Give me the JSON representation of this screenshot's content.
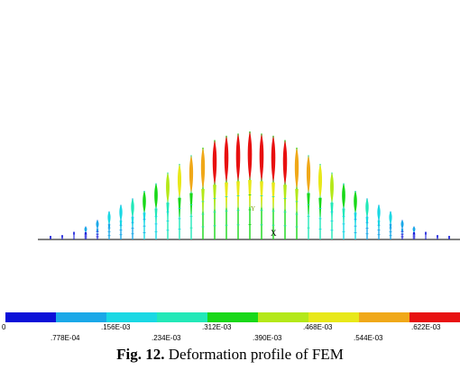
{
  "figure": {
    "caption_label": "Fig. 12.",
    "caption_text": " Deformation profile of FEM",
    "axis_marker": "X",
    "origin_marker": "Y",
    "colors": [
      "#0a10d8",
      "#1aa8e8",
      "#19d8e4",
      "#22e8b8",
      "#18d818",
      "#b4e818",
      "#e8e818",
      "#f0a818",
      "#e81010"
    ],
    "legend_ticks": [
      {
        "text": "0",
        "row": "upper",
        "index": 0
      },
      {
        "text": ".778E-04",
        "row": "lower",
        "index": 1
      },
      {
        "text": ".156E-03",
        "row": "upper",
        "index": 2
      },
      {
        "text": ".234E-03",
        "row": "lower",
        "index": 3
      },
      {
        "text": ".312E-03",
        "row": "upper",
        "index": 4
      },
      {
        "text": ".390E-03",
        "row": "lower",
        "index": 5
      },
      {
        "text": ".468E-03",
        "row": "upper",
        "index": 6
      },
      {
        "text": ".544E-03",
        "row": "lower",
        "index": 7
      },
      {
        "text": ".622E-03",
        "row": "upper",
        "index": 8
      }
    ],
    "deformation_profile": [
      0.005,
      0.04,
      0.07,
      0.12,
      0.18,
      0.26,
      0.32,
      0.38,
      0.45,
      0.52,
      0.62,
      0.7,
      0.78,
      0.85,
      0.92,
      0.96,
      0.98,
      1.0,
      0.98,
      0.96,
      0.92,
      0.85,
      0.78,
      0.7,
      0.62,
      0.52,
      0.45,
      0.38,
      0.32,
      0.26,
      0.18,
      0.12,
      0.07,
      0.04,
      0.005
    ]
  }
}
